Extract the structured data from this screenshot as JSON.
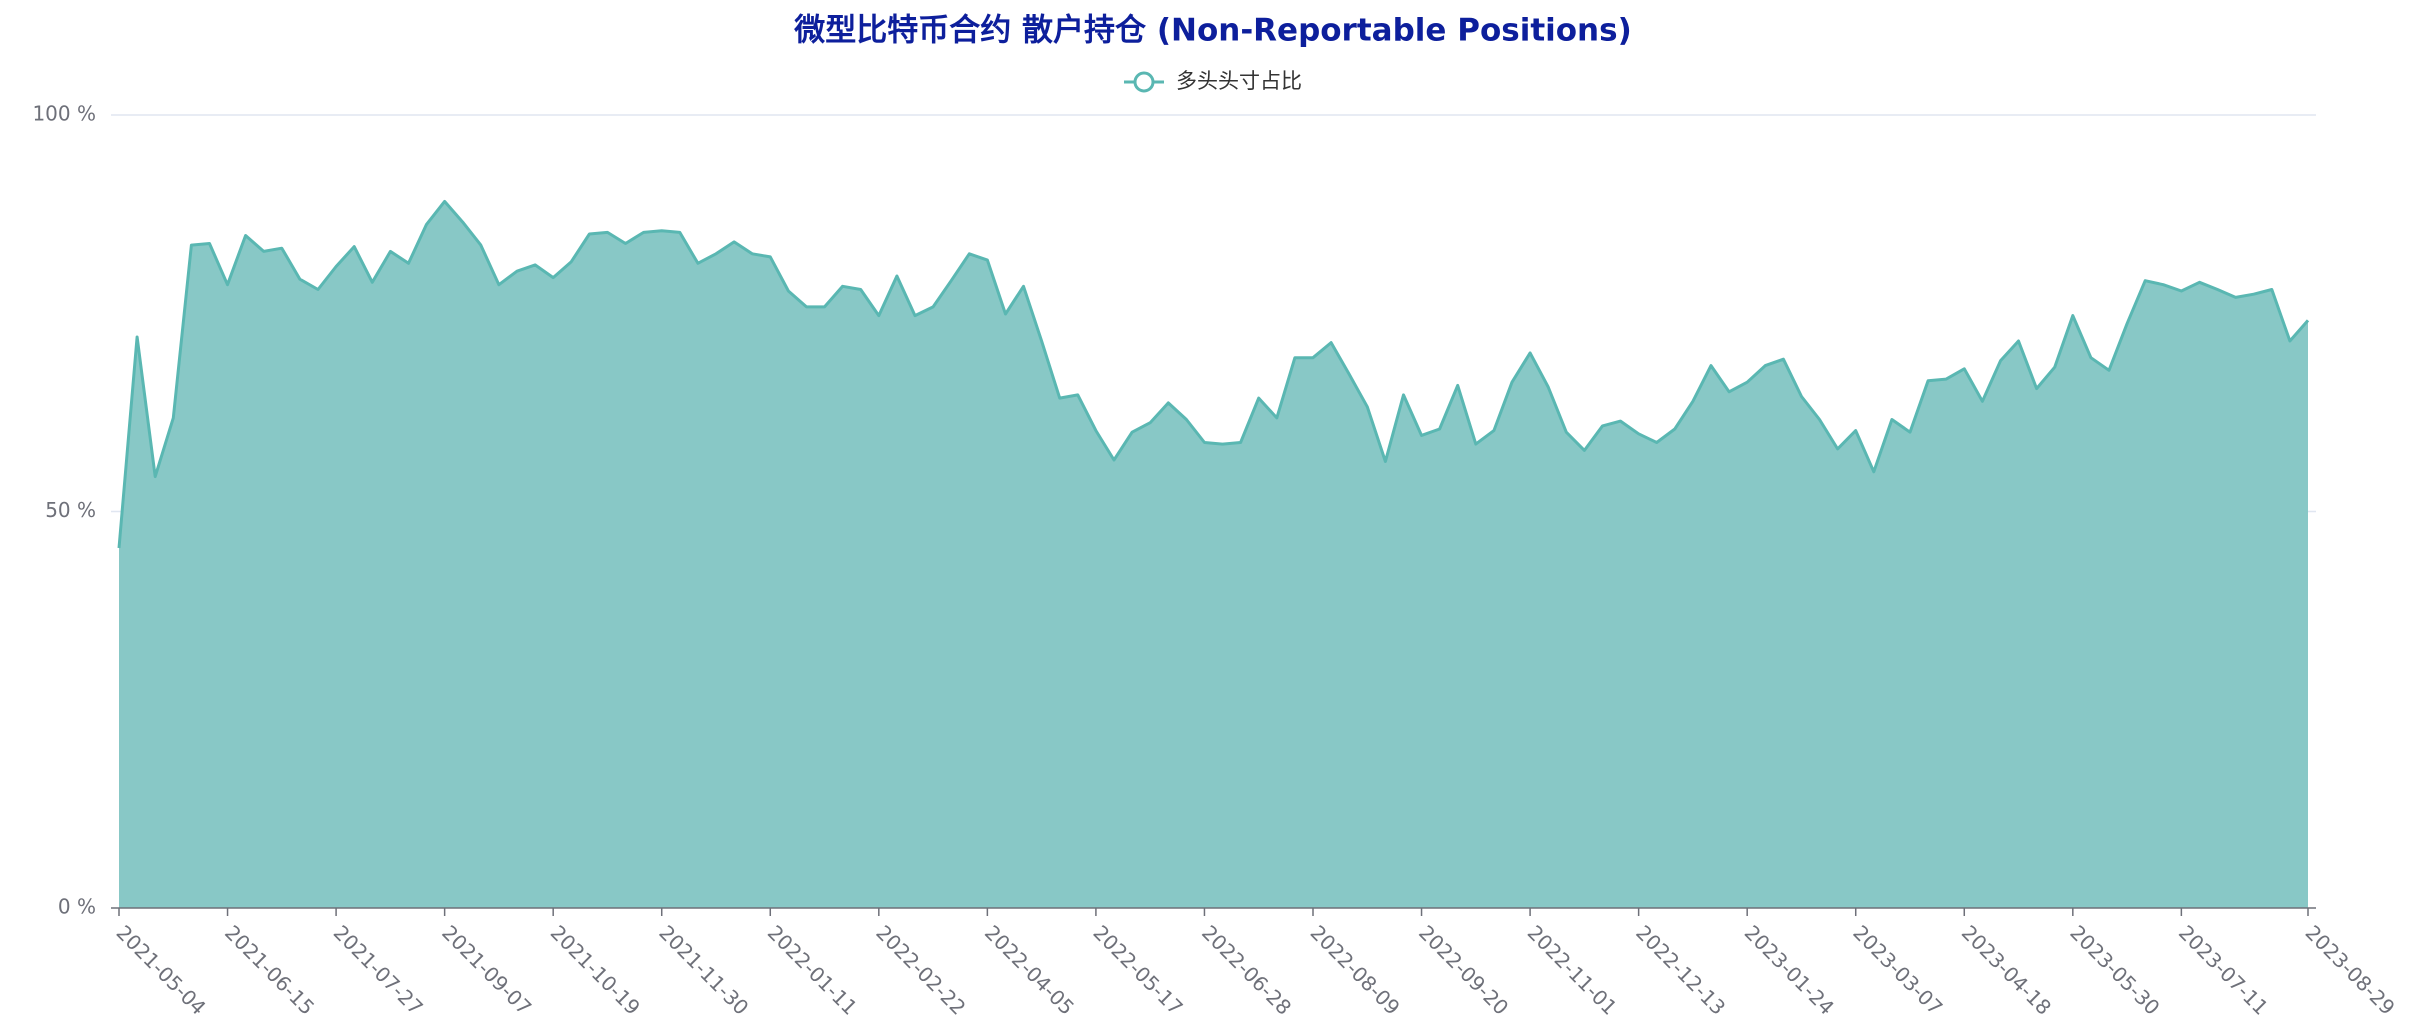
{
  "chart_data": {
    "type": "area",
    "title": "微型比特币合约 散户持仓 (Non-Reportable Positions)",
    "categories": [
      "2021-05-04",
      null,
      null,
      null,
      null,
      null,
      "2021-06-15",
      null,
      null,
      null,
      null,
      null,
      "2021-07-27",
      null,
      null,
      null,
      null,
      null,
      "2021-09-07",
      null,
      null,
      null,
      null,
      null,
      "2021-10-19",
      null,
      null,
      null,
      null,
      null,
      "2021-11-30",
      null,
      null,
      null,
      null,
      null,
      "2022-01-11",
      null,
      null,
      null,
      null,
      null,
      "2022-02-22",
      null,
      null,
      null,
      null,
      null,
      "2022-04-05",
      null,
      null,
      null,
      null,
      null,
      "2022-05-17",
      null,
      null,
      null,
      null,
      null,
      "2022-06-28",
      null,
      null,
      null,
      null,
      null,
      "2022-08-09",
      null,
      null,
      null,
      null,
      null,
      "2022-09-20",
      null,
      null,
      null,
      null,
      null,
      "2022-11-01",
      null,
      null,
      null,
      null,
      null,
      "2022-12-13",
      null,
      null,
      null,
      null,
      null,
      "2023-01-24",
      null,
      null,
      null,
      null,
      null,
      "2023-03-07",
      null,
      null,
      null,
      null,
      null,
      "2023-04-18",
      null,
      null,
      null,
      null,
      null,
      "2023-05-30",
      null,
      null,
      null,
      null,
      null,
      "2023-07-11",
      null,
      null,
      null,
      null,
      null,
      null,
      "2023-08-29"
    ],
    "series": [
      {
        "name": "多头头寸占比",
        "color": "#5ab7b2",
        "fill": "#88c8c6",
        "values": [
          45.4,
          72,
          54.4,
          61.8,
          83.6,
          83.8,
          78.6,
          84.8,
          82.8,
          83.2,
          79.3,
          78,
          80.9,
          83.4,
          78.9,
          82.8,
          81.3,
          86.2,
          89.1,
          86.5,
          83.6,
          78.6,
          80.3,
          81.1,
          79.5,
          81.5,
          85,
          85.2,
          83.8,
          85.2,
          85.4,
          85.2,
          81.3,
          82.5,
          84,
          82.5,
          82.1,
          77.8,
          75.8,
          75.8,
          78.4,
          78,
          74.7,
          79.7,
          74.7,
          75.8,
          79.1,
          82.5,
          81.7,
          74.9,
          78.4,
          71.5,
          64.3,
          64.7,
          60.2,
          56.5,
          60,
          61.2,
          63.7,
          61.6,
          58.7,
          58.5,
          58.7,
          64.3,
          61.8,
          69.4,
          69.4,
          71.3,
          67.3,
          63.2,
          56.3,
          64.7,
          59.6,
          60.4,
          65.9,
          58.5,
          60.2,
          66.3,
          70,
          65.7,
          60,
          57.7,
          60.8,
          61.4,
          59.8,
          58.7,
          60.4,
          63.9,
          68.4,
          65.1,
          66.3,
          68.4,
          69.2,
          64.5,
          61.6,
          57.9,
          60.2,
          55,
          61.6,
          60,
          66.5,
          66.7,
          68,
          63.9,
          69,
          71.5,
          65.5,
          68.2,
          74.7,
          69.4,
          67.8,
          73.7,
          79.1,
          78.6,
          77.8,
          78.9,
          78,
          77,
          77.4,
          78,
          71.5,
          74.1
        ]
      }
    ],
    "ylim": [
      0,
      100
    ],
    "yticks": [
      {
        "value": 0,
        "label": "0 %"
      },
      {
        "value": 50,
        "label": "50 %"
      },
      {
        "value": 100,
        "label": "100 %"
      }
    ],
    "grid": true
  }
}
